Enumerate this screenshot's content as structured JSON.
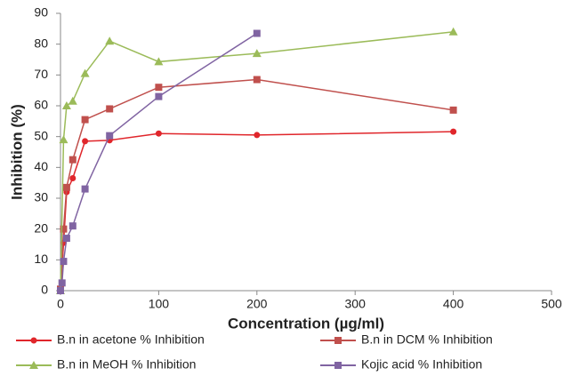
{
  "chart_data": {
    "type": "line",
    "xlabel": "Concentration (µg/ml)",
    "ylabel": "Inhibition (%)",
    "xlim": [
      0,
      500
    ],
    "xticks": [
      0,
      100,
      200,
      300,
      400,
      500
    ],
    "ylim": [
      0,
      90
    ],
    "yticks": [
      0,
      10,
      20,
      30,
      40,
      50,
      60,
      70,
      80,
      90
    ],
    "grid": false,
    "legend": "bottom",
    "series": [
      {
        "name": "B.n in acetone % Inhibition",
        "color": "#e0262b",
        "marker": "circle",
        "x": [
          0,
          3.125,
          6.25,
          12.5,
          25,
          50,
          100,
          200,
          400
        ],
        "values": [
          0,
          15.5,
          32,
          36.5,
          48.5,
          48.8,
          51,
          50.5,
          51.6
        ]
      },
      {
        "name": "B.n in DCM % Inhibition",
        "color": "#c0504d",
        "marker": "square",
        "x": [
          0,
          3.125,
          6.25,
          12.5,
          25,
          50,
          100,
          200,
          400
        ],
        "values": [
          0.5,
          20,
          33.5,
          42.5,
          55.5,
          59,
          66,
          68.5,
          58.6
        ]
      },
      {
        "name": "B.n in MeOH % Inhibition",
        "color": "#9bbb59",
        "marker": "triangle",
        "x": [
          0,
          3.125,
          6.25,
          12.5,
          25,
          50,
          100,
          200,
          400
        ],
        "values": [
          0,
          49,
          60,
          61.5,
          70.5,
          81,
          74.3,
          77,
          84
        ]
      },
      {
        "name": "Kojic acid % Inhibition",
        "color": "#8064a2",
        "marker": "square",
        "x": [
          0,
          1.5625,
          3.125,
          6.25,
          12.5,
          25,
          50,
          100,
          200
        ],
        "values": [
          0,
          2.5,
          9.5,
          17,
          21,
          33,
          50.3,
          63,
          83.5
        ]
      }
    ]
  }
}
